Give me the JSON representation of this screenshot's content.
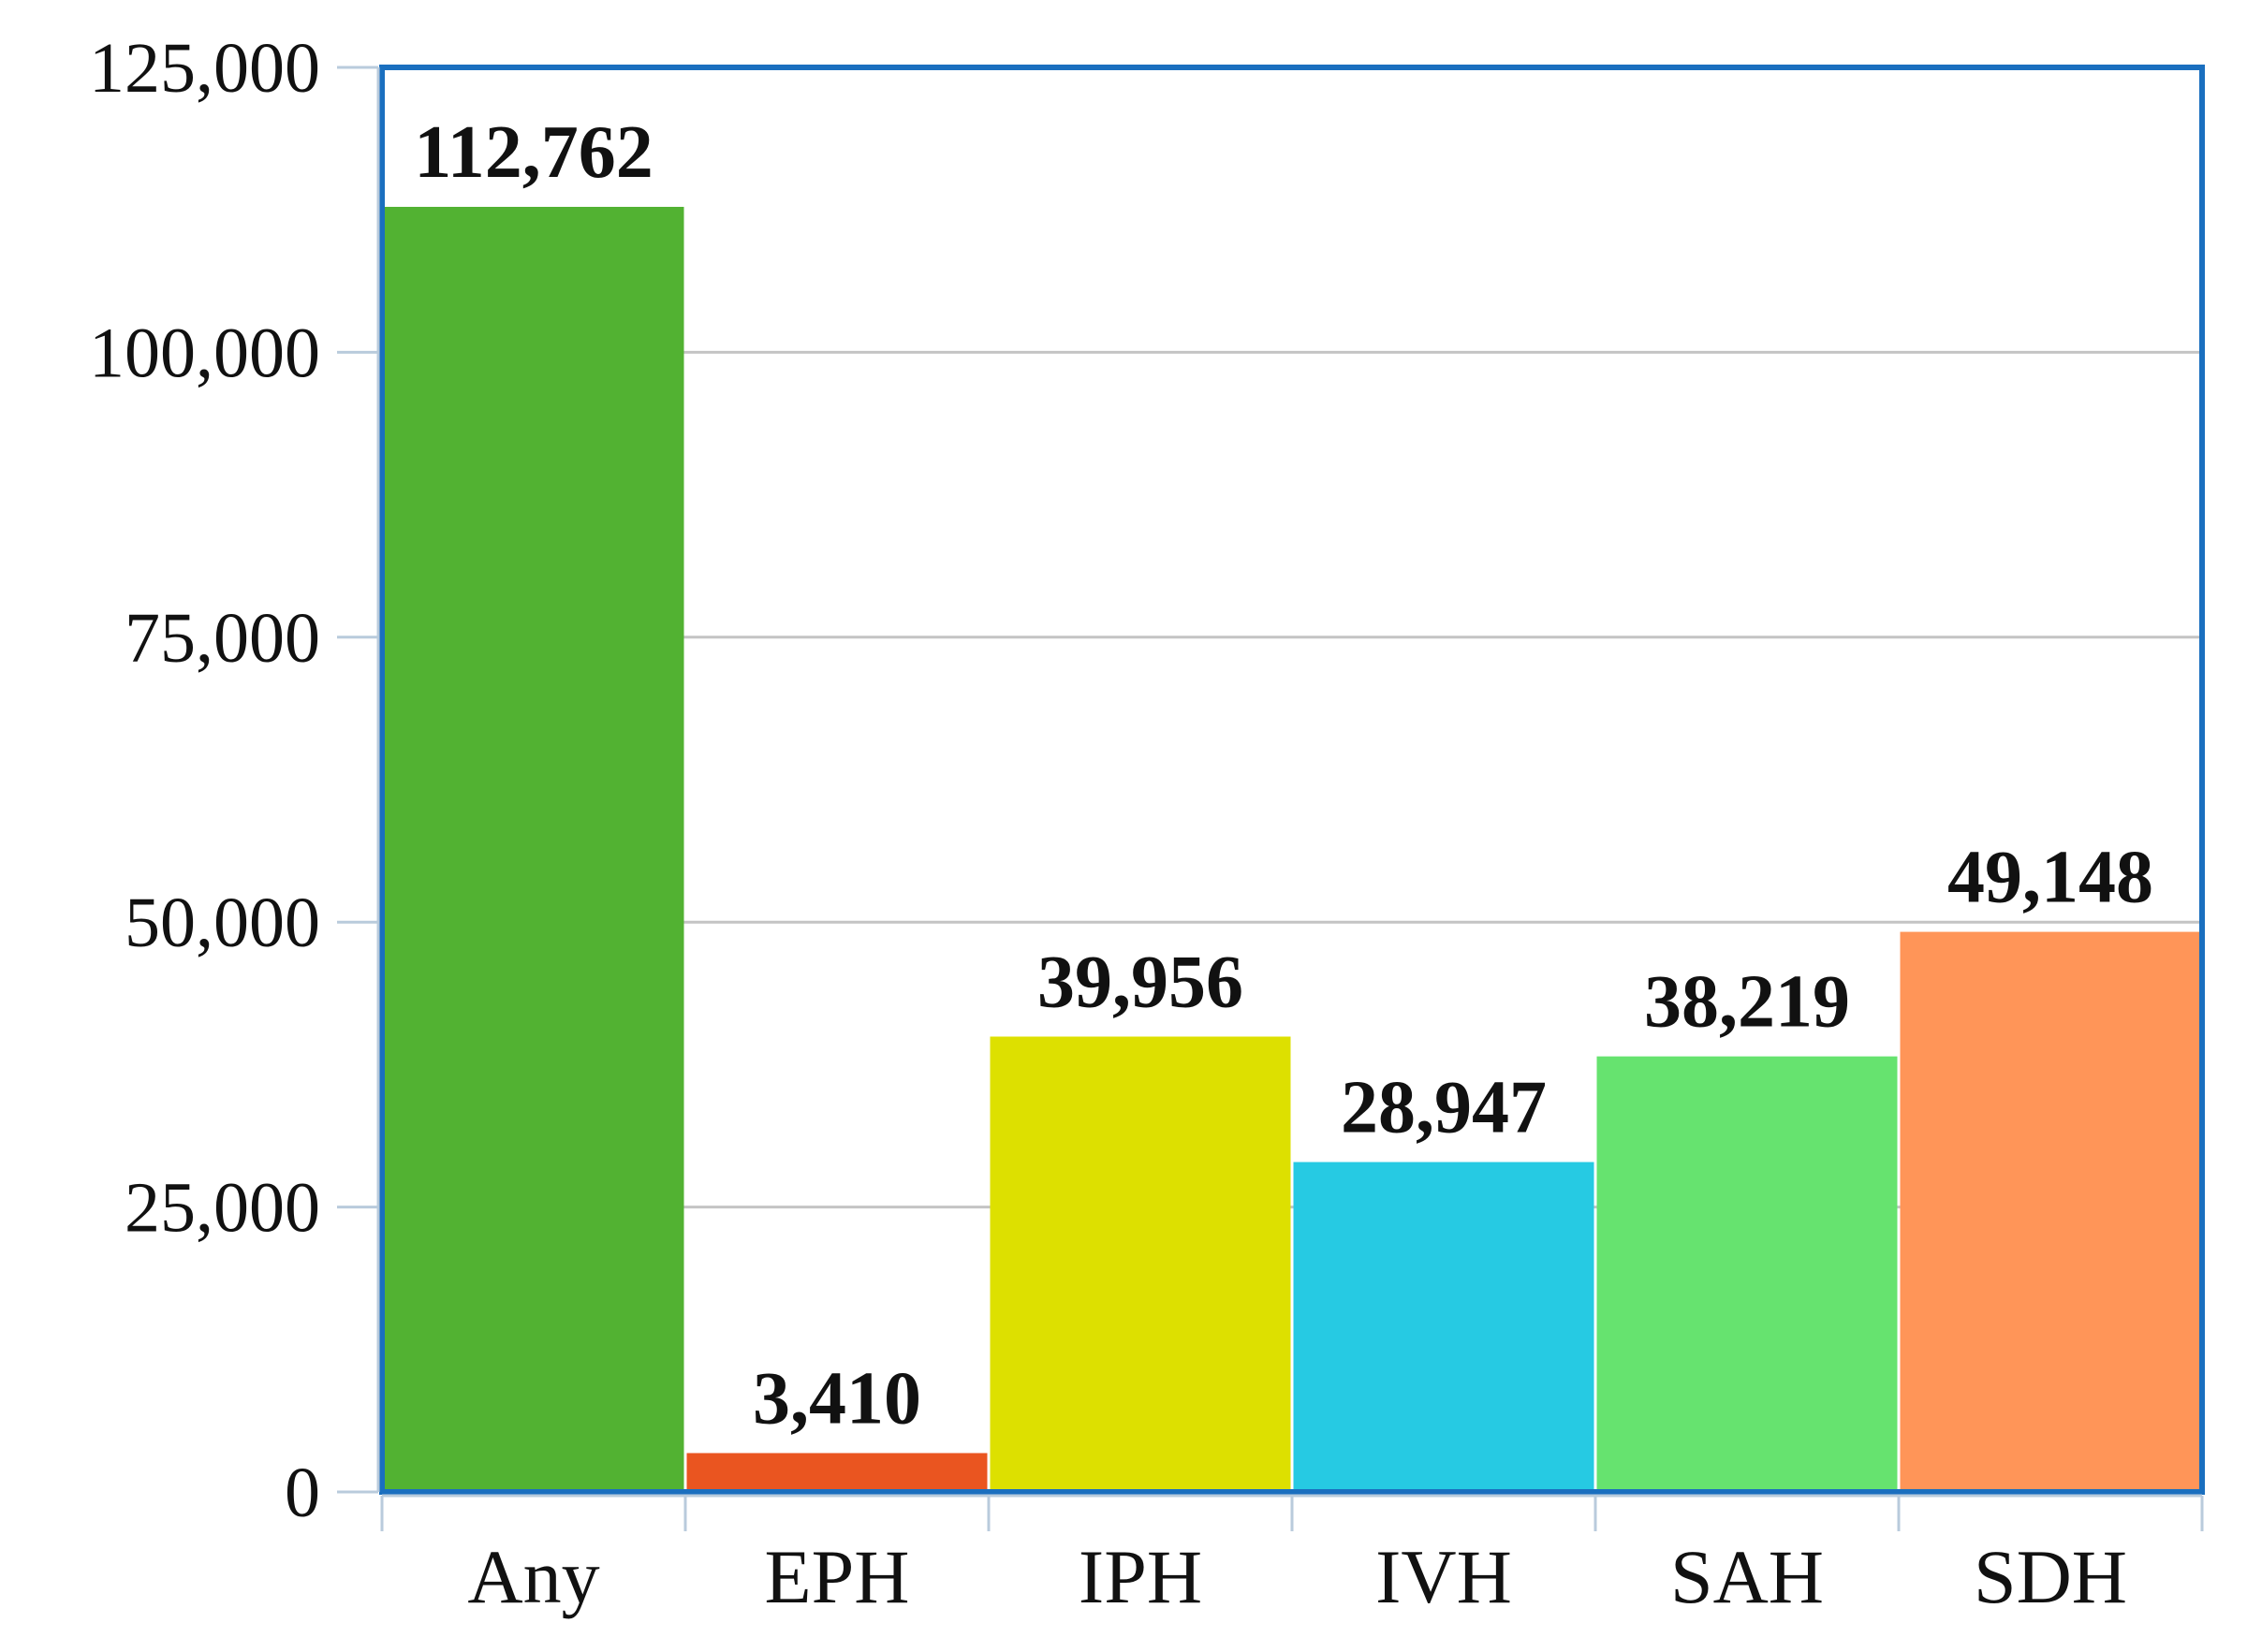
{
  "chart_data": {
    "type": "bar",
    "title": "",
    "xlabel": "",
    "ylabel": "",
    "categories": [
      "Any",
      "EPH",
      "IPH",
      "IVH",
      "SAH",
      "SDH"
    ],
    "values": [
      112762,
      3410,
      39956,
      28947,
      38219,
      49148
    ],
    "data_labels": [
      "112,762",
      "3,410",
      "39,956",
      "28,947",
      "38,219",
      "49,148"
    ],
    "bar_colors": [
      "#52b232",
      "#ea5520",
      "#dde000",
      "#26cae3",
      "#66e36f",
      "#ff9558"
    ],
    "ylim": [
      0,
      125000
    ],
    "yticks": [
      0,
      25000,
      50000,
      75000,
      100000,
      125000
    ],
    "ytick_labels": [
      "0",
      "25,000",
      "50,000",
      "75,000",
      "100,000",
      "125,000"
    ],
    "grid": true,
    "legend": "none",
    "frame_color": "#1a6fbf",
    "grid_color": "#c4c4c4",
    "axis_color": "#b9cbdc"
  }
}
